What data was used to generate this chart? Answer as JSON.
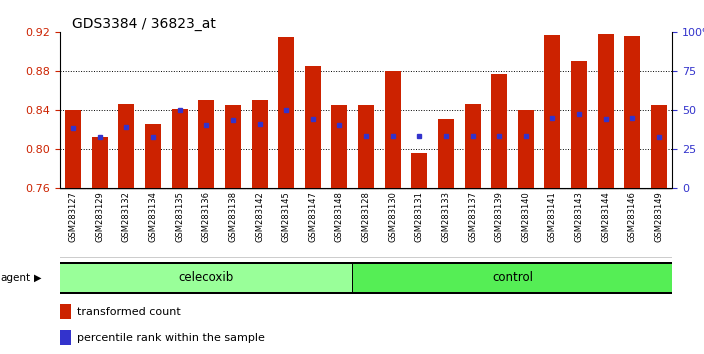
{
  "title": "GDS3384 / 36823_at",
  "samples": [
    "GSM283127",
    "GSM283129",
    "GSM283132",
    "GSM283134",
    "GSM283135",
    "GSM283136",
    "GSM283138",
    "GSM283142",
    "GSM283145",
    "GSM283147",
    "GSM283148",
    "GSM283128",
    "GSM283130",
    "GSM283131",
    "GSM283133",
    "GSM283137",
    "GSM283139",
    "GSM283140",
    "GSM283141",
    "GSM283143",
    "GSM283144",
    "GSM283146",
    "GSM283149"
  ],
  "transformed_count": [
    0.84,
    0.812,
    0.846,
    0.825,
    0.841,
    0.85,
    0.845,
    0.85,
    0.915,
    0.885,
    0.845,
    0.845,
    0.88,
    0.796,
    0.83,
    0.846,
    0.877,
    0.84,
    0.917,
    0.89,
    0.918,
    0.916,
    0.845
  ],
  "percentile_rank": [
    0.821,
    0.812,
    0.822,
    0.812,
    0.84,
    0.824,
    0.829,
    0.825,
    0.84,
    0.831,
    0.824,
    0.813,
    0.813,
    0.813,
    0.813,
    0.813,
    0.813,
    0.813,
    0.832,
    0.836,
    0.831,
    0.832,
    0.812
  ],
  "celecoxib_count": 11,
  "control_count": 12,
  "ylim_left": [
    0.76,
    0.92
  ],
  "ylim_right": [
    0,
    100
  ],
  "yticks_left": [
    0.76,
    0.8,
    0.84,
    0.88,
    0.92
  ],
  "yticks_right": [
    0,
    25,
    50,
    75,
    100
  ],
  "bar_color": "#CC2200",
  "blue_color": "#3333CC",
  "tick_bg_color": "#CCCCCC",
  "celecoxib_color": "#99FF99",
  "control_color": "#55EE55",
  "baseline": 0.76,
  "agent_label": "agent",
  "celecoxib_label": "celecoxib",
  "control_label": "control",
  "legend_red": "transformed count",
  "legend_blue": "percentile rank within the sample",
  "grid_vals": [
    0.8,
    0.84,
    0.88
  ]
}
